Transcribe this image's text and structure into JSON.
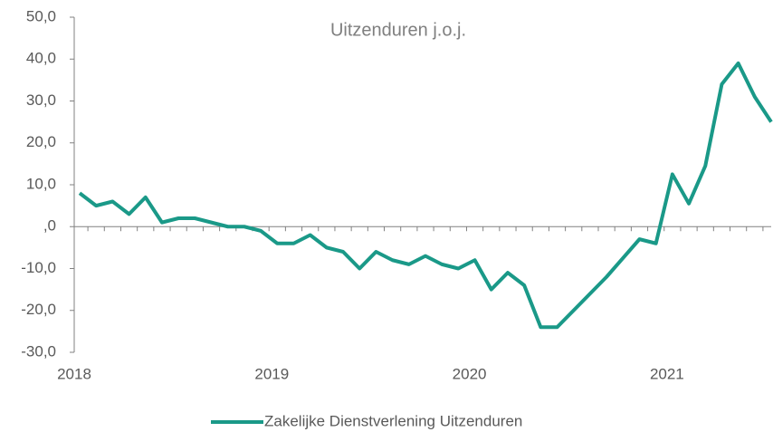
{
  "chart_data": {
    "type": "line",
    "title": "Uitzenduren j.o.j.",
    "categories": [
      "2018",
      null,
      null,
      null,
      null,
      null,
      null,
      null,
      null,
      null,
      null,
      null,
      "2019",
      null,
      null,
      null,
      null,
      null,
      null,
      null,
      null,
      null,
      null,
      null,
      "2020",
      null,
      null,
      null,
      null,
      null,
      null,
      null,
      null,
      null,
      null,
      null,
      "2021",
      null,
      null,
      null,
      null,
      null,
      null
    ],
    "series": [
      {
        "name": "Zakelijke Dienstverlening Uitzenduren",
        "color": "#1a9988",
        "values": [
          8,
          5,
          6,
          3,
          7,
          1,
          2,
          2,
          1,
          0,
          0,
          -1,
          -4,
          -4,
          -2,
          -5,
          -6,
          -10,
          -6,
          -8,
          -9,
          -7,
          -9,
          -10,
          -8,
          -15,
          -11,
          -14,
          -24,
          -24,
          -20,
          -16,
          -12,
          -7.5,
          -3,
          -4,
          12.5,
          5.5,
          14.5,
          34,
          39,
          31,
          25
        ]
      }
    ],
    "ylim": [
      -30,
      50
    ],
    "yticks": [
      {
        "value": -30,
        "label": "-30,0"
      },
      {
        "value": -20,
        "label": "-20,0"
      },
      {
        "value": -10,
        "label": "-10,0"
      },
      {
        "value": 0,
        "label": ",0"
      },
      {
        "value": 10,
        "label": "10,0"
      },
      {
        "value": 20,
        "label": "20,0"
      },
      {
        "value": 30,
        "label": "30,0"
      },
      {
        "value": 40,
        "label": "40,0"
      },
      {
        "value": 50,
        "label": "50,0"
      }
    ],
    "legend": "bottom"
  }
}
